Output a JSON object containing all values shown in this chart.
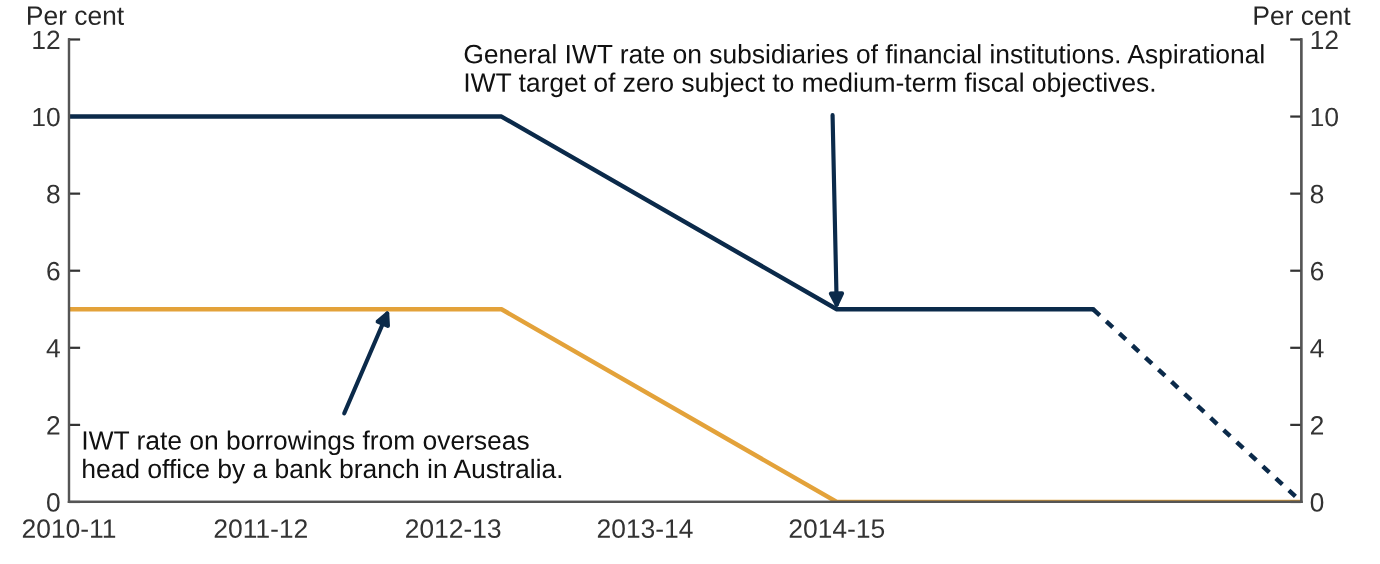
{
  "chart_data": {
    "type": "line",
    "ylabel": "Per cent",
    "y2label": "Per cent",
    "xlim": [
      "2010-07-01",
      "2016-12-01"
    ],
    "xticks": [
      {
        "value": "2010-07-01",
        "label": "2010-11"
      },
      {
        "value": "2011-07-01",
        "label": "2011-12"
      },
      {
        "value": "2012-07-01",
        "label": "2012-13"
      },
      {
        "value": "2013-07-01",
        "label": "2013-14"
      },
      {
        "value": "2014-07-01",
        "label": "2014-15"
      }
    ],
    "ylim": [
      0,
      12
    ],
    "yticks": [
      0,
      2,
      4,
      6,
      8,
      10,
      12
    ],
    "y2lim": [
      0,
      12
    ],
    "y2ticks": [
      0,
      2,
      4,
      6,
      8,
      10,
      12
    ],
    "grid": false,
    "legend": false,
    "marker": "none",
    "series": [
      {
        "color": "#0b2a4a",
        "line_style": "solid",
        "x": [
          "2010-07-01",
          "2012-10-01",
          "2014-07-01",
          "2015-11-01"
        ],
        "values": [
          10,
          10,
          5,
          5
        ]
      },
      {
        "color": "#0b2a4a",
        "line_style": "dotted",
        "x": [
          "2015-11-01",
          "2016-12-01"
        ],
        "values": [
          5,
          0
        ]
      },
      {
        "color": "#e3a23a",
        "line_style": "solid",
        "x": [
          "2010-07-01",
          "2012-10-01",
          "2014-07-01",
          "2016-12-01"
        ],
        "values": [
          5,
          5,
          0,
          0
        ]
      }
    ],
    "annotations": [
      {
        "text": "General IWT rate on subsidiaries of financial institutions. Aspirational\nIWT target of zero subject to medium-term fiscal objectives.",
        "x": "2014-07-01",
        "y": 5
      },
      {
        "text": "IWT rate on borrowings from overseas\nhead office by a bank branch in Australia.",
        "x": "2012-03-01",
        "y": 5
      }
    ]
  }
}
